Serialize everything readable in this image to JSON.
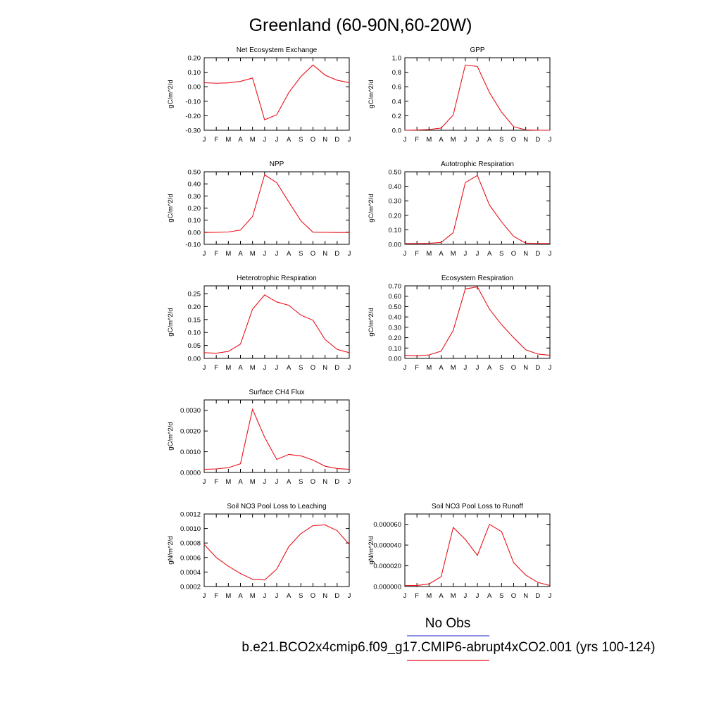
{
  "title": "Greenland (60-90N,60-20W)",
  "months": [
    "J",
    "F",
    "M",
    "A",
    "M",
    "J",
    "J",
    "A",
    "S",
    "O",
    "N",
    "D",
    "J"
  ],
  "colors": {
    "model": "#e8141c",
    "obs": "#4b4bd8"
  },
  "legend": {
    "obs_label": "No Obs",
    "model_label": "b.e21.BCO2x4cmip6.f09_g17.CMIP6-abrupt4xCO2.001 (yrs 100-124)"
  },
  "chart_data": [
    {
      "type": "line",
      "title": "Net Ecosystem Exchange",
      "ylabel": "gC/m^2/d",
      "ylim": [
        -0.3,
        0.2
      ],
      "yticks": [
        "0.20",
        "0.10",
        "0.00",
        "-0.10",
        "-0.20",
        "-0.30"
      ],
      "ytick_values": [
        0.2,
        0.1,
        0.0,
        -0.1,
        -0.2,
        -0.3
      ],
      "values": [
        0.028,
        0.024,
        0.027,
        0.037,
        0.06,
        -0.228,
        -0.193,
        -0.04,
        0.07,
        0.15,
        0.08,
        0.045,
        0.028
      ]
    },
    {
      "type": "line",
      "title": "GPP",
      "ylabel": "gC/m^2/d",
      "ylim": [
        0.0,
        1.0
      ],
      "yticks": [
        "1.0",
        "0.8",
        "0.6",
        "0.4",
        "0.2",
        "0.0"
      ],
      "ytick_values": [
        1.0,
        0.8,
        0.6,
        0.4,
        0.2,
        0.0
      ],
      "values": [
        0.0,
        0.003,
        0.01,
        0.03,
        0.21,
        0.9,
        0.88,
        0.52,
        0.25,
        0.05,
        0.005,
        0.0,
        0.0
      ]
    },
    {
      "type": "line",
      "title": "NPP",
      "ylabel": "gC/m^2/d",
      "ylim": [
        -0.1,
        0.5
      ],
      "yticks": [
        "0.50",
        "0.40",
        "0.30",
        "0.20",
        "0.10",
        "0.00",
        "-0.10"
      ],
      "ytick_values": [
        0.5,
        0.4,
        0.3,
        0.2,
        0.1,
        0.0,
        -0.1
      ],
      "values": [
        -0.002,
        -0.001,
        0.002,
        0.018,
        0.13,
        0.475,
        0.41,
        0.25,
        0.095,
        0.0,
        -0.001,
        -0.002,
        -0.002
      ]
    },
    {
      "type": "line",
      "title": "Autotrophic Respiration",
      "ylabel": "gC/m^2/d",
      "ylim": [
        0.0,
        0.5
      ],
      "yticks": [
        "0.50",
        "0.40",
        "0.30",
        "0.20",
        "0.10",
        "0.00"
      ],
      "ytick_values": [
        0.5,
        0.4,
        0.3,
        0.2,
        0.1,
        0.0
      ],
      "values": [
        0.005,
        0.005,
        0.007,
        0.013,
        0.08,
        0.425,
        0.475,
        0.27,
        0.155,
        0.055,
        0.008,
        0.006,
        0.005
      ]
    },
    {
      "type": "line",
      "title": "Heterotrophic Respiration",
      "ylabel": "gC/m^2/d",
      "ylim": [
        0.0,
        0.28
      ],
      "yticks": [
        "0.25",
        "0.20",
        "0.15",
        "0.10",
        "0.05",
        "0.00"
      ],
      "ytick_values": [
        0.25,
        0.2,
        0.15,
        0.1,
        0.05,
        0.0
      ],
      "values": [
        0.022,
        0.02,
        0.027,
        0.055,
        0.19,
        0.245,
        0.218,
        0.205,
        0.167,
        0.147,
        0.073,
        0.035,
        0.022
      ]
    },
    {
      "type": "line",
      "title": "Ecosystem Respiration",
      "ylabel": "gC/m^2/d",
      "ylim": [
        0.0,
        0.7
      ],
      "yticks": [
        "0.70",
        "0.60",
        "0.50",
        "0.40",
        "0.30",
        "0.20",
        "0.10",
        "0.00"
      ],
      "ytick_values": [
        0.7,
        0.6,
        0.5,
        0.4,
        0.3,
        0.2,
        0.1,
        0.0
      ],
      "values": [
        0.03,
        0.025,
        0.033,
        0.07,
        0.27,
        0.67,
        0.69,
        0.475,
        0.325,
        0.2,
        0.083,
        0.042,
        0.03
      ]
    },
    {
      "type": "line",
      "title": "Surface CH4 Flux",
      "ylabel": "gC/m^2/d",
      "ylim": [
        0.0,
        0.0035
      ],
      "yticks": [
        "0.0030",
        "0.0020",
        "0.0010",
        "0.0000"
      ],
      "ytick_values": [
        0.003,
        0.002,
        0.001,
        0.0
      ],
      "values": [
        0.00015,
        0.00017,
        0.00023,
        0.00042,
        0.00305,
        0.0017,
        0.00063,
        0.00087,
        0.0008,
        0.0006,
        0.0003,
        0.00019,
        0.00015
      ]
    },
    null,
    {
      "type": "line",
      "title": "Soil NO3 Pool Loss to Leaching",
      "ylabel": "gN/m^2/d",
      "ylim": [
        0.0002,
        0.0012
      ],
      "yticks": [
        "0.0012",
        "0.0010",
        "0.0008",
        "0.0006",
        "0.0004",
        "0.0002"
      ],
      "ytick_values": [
        0.0012,
        0.001,
        0.0008,
        0.0006,
        0.0004,
        0.0002
      ],
      "values": [
        0.00078,
        0.0006,
        0.00048,
        0.00038,
        0.0003,
        0.00029,
        0.00044,
        0.00075,
        0.00093,
        0.00104,
        0.00105,
        0.00097,
        0.00078
      ]
    },
    {
      "type": "line",
      "title": "Soil NO3 Pool Loss to Runoff",
      "ylabel": "gN/m^2/d",
      "ylim": [
        0.0,
        7e-05
      ],
      "yticks": [
        "0.000060",
        "0.000040",
        "0.000020",
        "0.000000"
      ],
      "ytick_values": [
        6e-05,
        4e-05,
        2e-05,
        0.0
      ],
      "values": [
        1e-06,
        1e-06,
        2.5e-06,
        9.5e-06,
        5.7e-05,
        4.55e-05,
        3e-05,
        6e-05,
        5.3e-05,
        2.3e-05,
        1.1e-05,
        4e-06,
        1e-06
      ]
    }
  ]
}
